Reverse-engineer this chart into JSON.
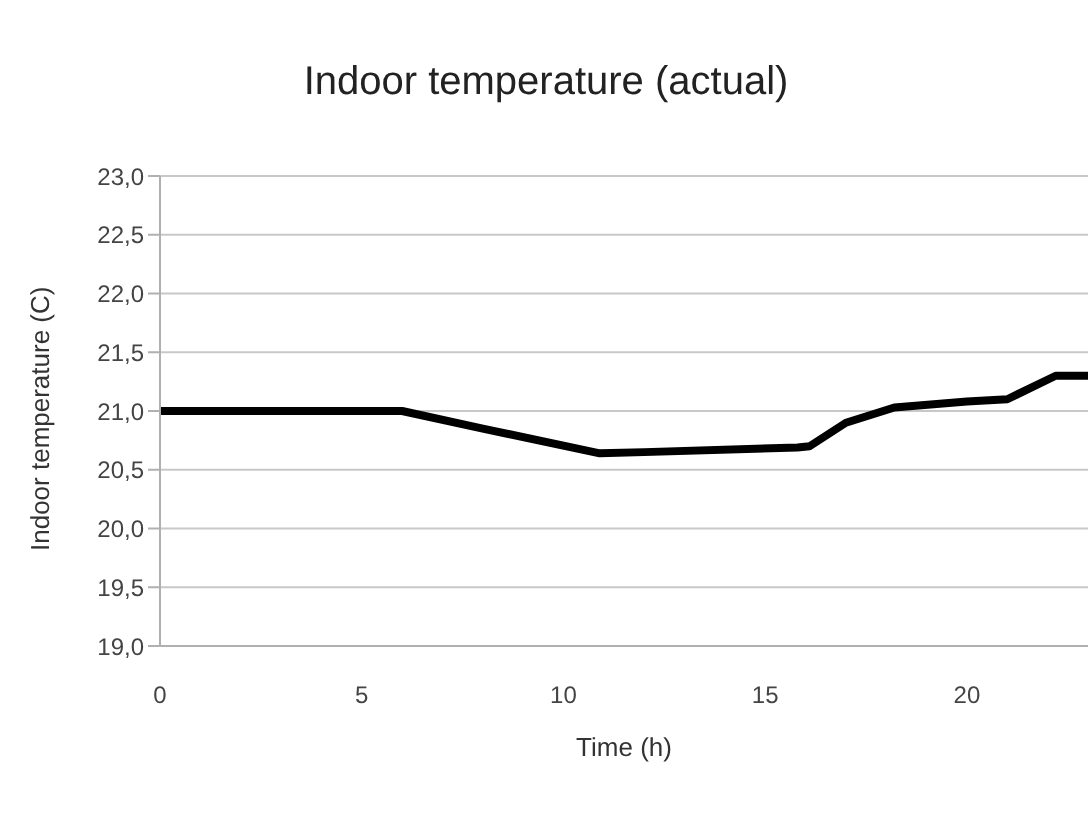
{
  "chart_data": {
    "type": "line",
    "title": "Indoor temperature (actual)",
    "xlabel": "Time (h)",
    "ylabel": "Indoor temperature (C)",
    "x": [
      0,
      4.7,
      6,
      8,
      10.9,
      12,
      15.8,
      16.1,
      17,
      18.2,
      20,
      21,
      22.2,
      23
    ],
    "series": [
      {
        "color": "#000000",
        "values": [
          21.0,
          21.0,
          21.0,
          20.85,
          20.64,
          20.65,
          20.69,
          20.7,
          20.9,
          21.03,
          21.08,
          21.1,
          21.3,
          21.3
        ]
      }
    ],
    "xlim": [
      0,
      23
    ],
    "xticks": [
      0,
      5,
      10,
      15,
      20
    ],
    "ylim": [
      19,
      23
    ],
    "yticks": [
      {
        "value": 19,
        "label": "19,0"
      },
      {
        "value": 19.5,
        "label": "19,5"
      },
      {
        "value": 20,
        "label": "20,0"
      },
      {
        "value": 20.5,
        "label": "20,5"
      },
      {
        "value": 21,
        "label": "21,0"
      },
      {
        "value": 21.5,
        "label": "21,5"
      },
      {
        "value": 22,
        "label": "22,0"
      },
      {
        "value": 22.5,
        "label": "22,5"
      },
      {
        "value": 23,
        "label": "23,0"
      }
    ],
    "grid": "y",
    "marker": "none",
    "line_style": "solid"
  }
}
